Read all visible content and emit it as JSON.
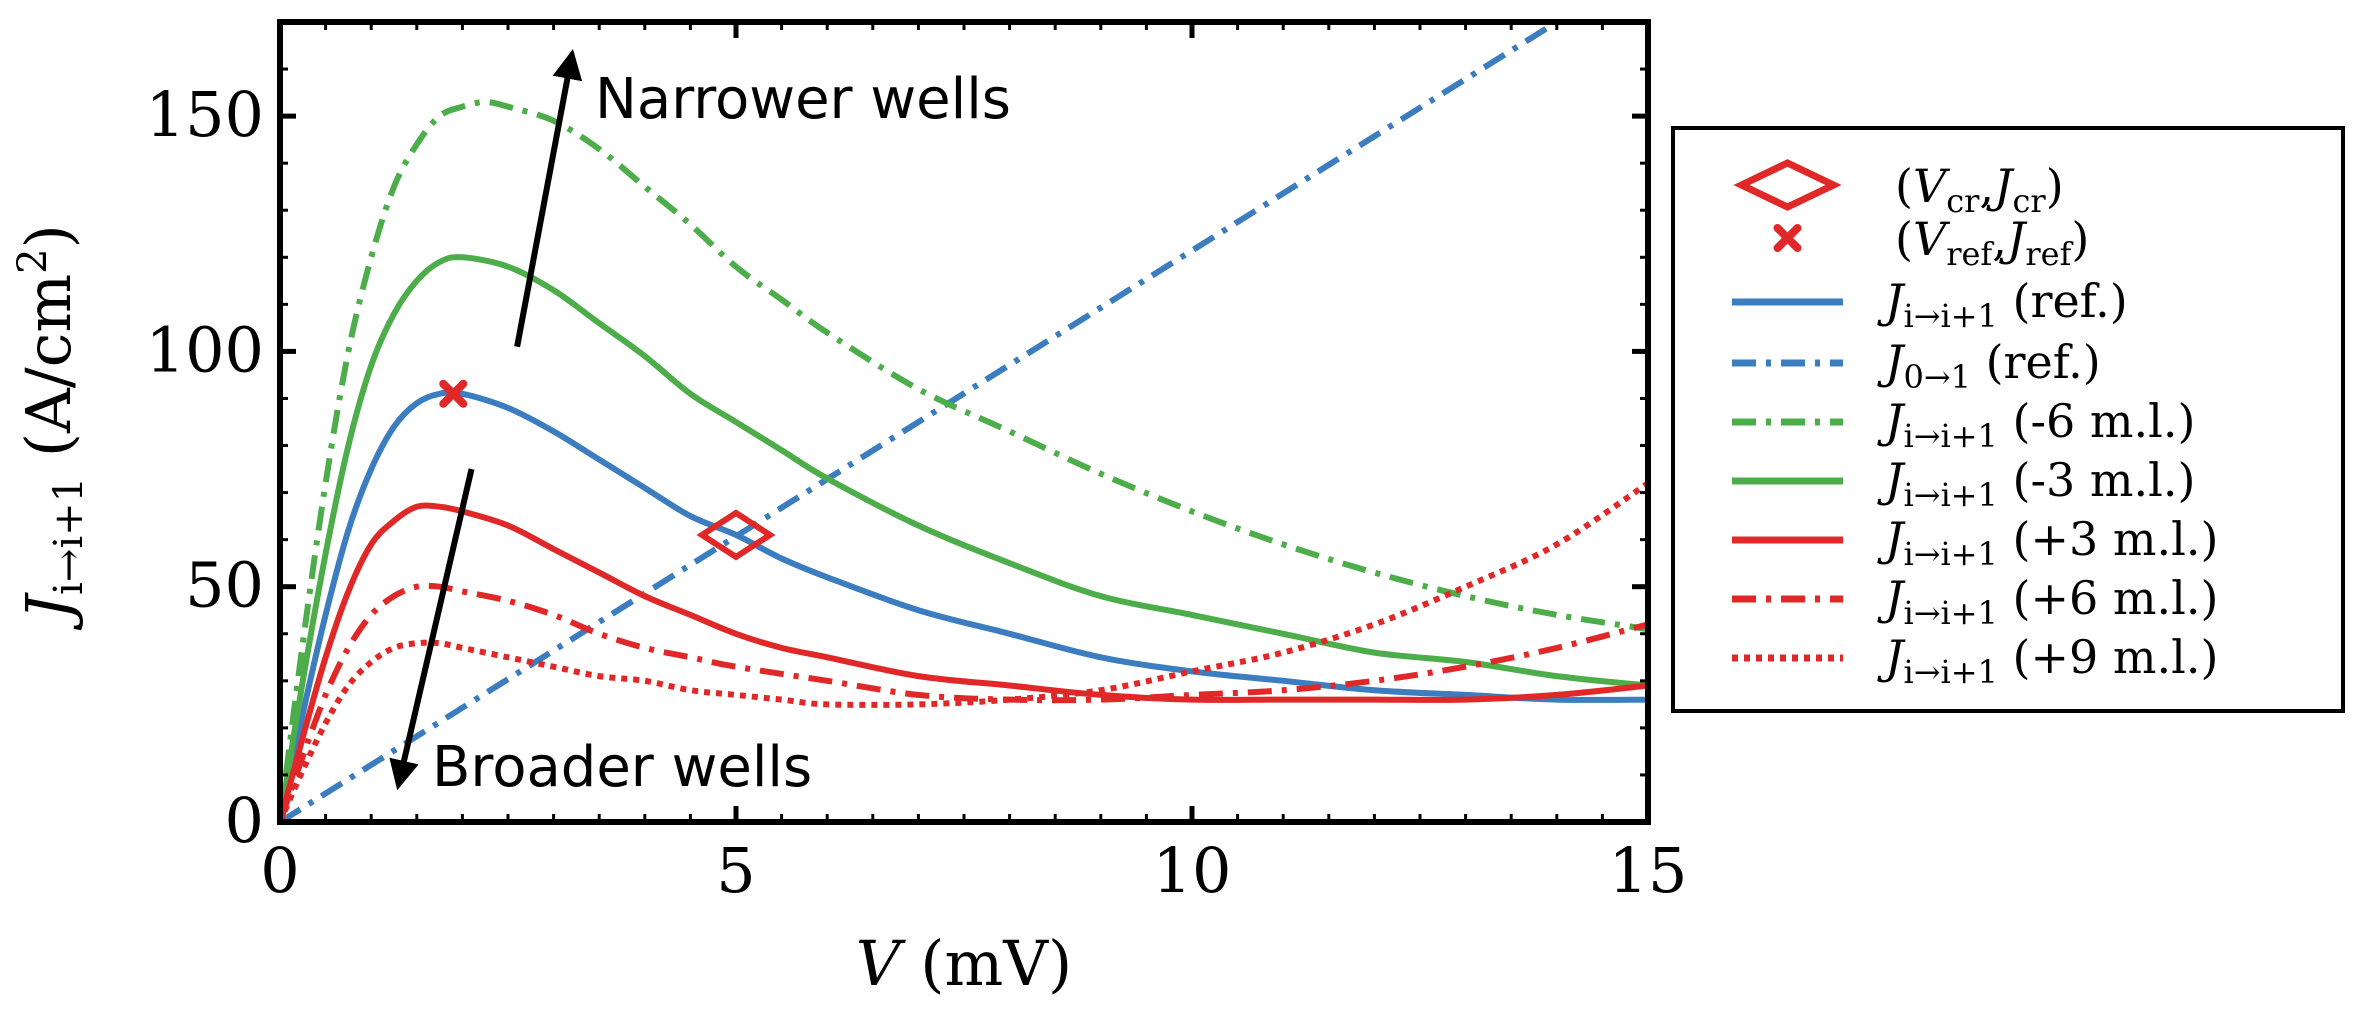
{
  "chart_data": {
    "type": "line",
    "title": "",
    "xlabel": {
      "symbol": "V",
      "unit": "(mV)"
    },
    "ylabel": {
      "symbol": "J",
      "subscript": "i→i+1",
      "unit_prefix": "(A/cm",
      "unit_sup": "2",
      "unit_suffix": ")"
    },
    "xlim": [
      0,
      15
    ],
    "ylim": [
      0,
      170
    ],
    "xticks": [
      0,
      5,
      10,
      15
    ],
    "yticks": [
      0,
      50,
      100,
      150
    ],
    "xtick_labels": [
      "0",
      "5",
      "10",
      "15"
    ],
    "ytick_labels": [
      "0",
      "50",
      "100",
      "150"
    ],
    "grid": false,
    "legend_position": "right-outside",
    "colors": {
      "blue": "#3b7dbf",
      "green": "#4dad4a",
      "red": "#e02828"
    },
    "series": [
      {
        "name": "J_i→i+1 (ref.)",
        "color": "#3b7dbf",
        "dash": "solid",
        "x": [
          0,
          0.25,
          0.5,
          0.75,
          1,
          1.25,
          1.5,
          1.75,
          2,
          2.5,
          3,
          3.5,
          4,
          4.5,
          5,
          5.5,
          6,
          7,
          8,
          9,
          10,
          11,
          12,
          13,
          14,
          15
        ],
        "y": [
          0,
          23,
          44,
          62,
          75,
          84,
          89,
          91,
          91,
          88,
          83,
          77,
          71,
          65,
          61,
          56,
          52,
          45,
          40,
          35,
          32,
          30,
          28,
          27,
          26,
          26
        ]
      },
      {
        "name": "J_0→1 (ref.)",
        "color": "#3b7dbf",
        "dash": "dashdot",
        "x": [
          0,
          14
        ],
        "y": [
          0,
          170
        ]
      },
      {
        "name": "J_i→i+1 (-6 m.l.)",
        "color": "#4dad4a",
        "dash": "dashdot",
        "x": [
          0,
          0.25,
          0.5,
          0.75,
          1,
          1.25,
          1.5,
          1.75,
          2,
          2.25,
          2.5,
          3,
          3.5,
          4,
          4.5,
          5,
          5.5,
          6,
          7,
          8,
          9,
          10,
          11,
          12,
          13,
          14,
          15
        ],
        "y": [
          0,
          38,
          72,
          100,
          120,
          135,
          144,
          150,
          152,
          153,
          152,
          149,
          143,
          135,
          127,
          118,
          111,
          104,
          92,
          83,
          74,
          66,
          59,
          53,
          48,
          44,
          41
        ]
      },
      {
        "name": "J_i→i+1 (-3 m.l.)",
        "color": "#4dad4a",
        "dash": "solid",
        "x": [
          0,
          0.25,
          0.5,
          0.75,
          1,
          1.25,
          1.5,
          1.75,
          2,
          2.5,
          3,
          3.5,
          4,
          4.5,
          5,
          5.5,
          6,
          7,
          8,
          9,
          10,
          11,
          12,
          13,
          14,
          15
        ],
        "y": [
          0,
          30,
          57,
          80,
          97,
          108,
          115,
          119,
          120,
          118,
          113,
          106,
          99,
          91,
          85,
          79,
          73,
          63,
          55,
          48,
          44,
          40,
          36,
          34,
          31,
          29
        ]
      },
      {
        "name": "J_i→i+1 (+3 m.l.)",
        "color": "#e02828",
        "dash": "solid",
        "x": [
          0,
          0.25,
          0.5,
          0.75,
          1,
          1.25,
          1.5,
          1.75,
          2,
          2.5,
          3,
          3.5,
          4,
          4.5,
          5,
          5.5,
          6,
          7,
          8,
          9,
          10,
          11,
          12,
          13,
          14,
          15
        ],
        "y": [
          0,
          18,
          35,
          49,
          59,
          64,
          67,
          67,
          66,
          63,
          58,
          53,
          48,
          44,
          40,
          37,
          35,
          31,
          29,
          27,
          26,
          26,
          26,
          26,
          27,
          29
        ]
      },
      {
        "name": "J_i→i+1 (+6 m.l.)",
        "color": "#e02828",
        "dash": "dashdot",
        "x": [
          0,
          0.25,
          0.5,
          0.75,
          1,
          1.25,
          1.5,
          1.75,
          2,
          2.5,
          3,
          3.5,
          4,
          4.5,
          5,
          6,
          7,
          8,
          9,
          10,
          11,
          12,
          13,
          14,
          15
        ],
        "y": [
          0,
          14,
          27,
          37,
          44,
          48,
          50,
          50,
          49,
          47,
          44,
          40,
          37,
          35,
          33,
          30,
          27,
          26,
          26,
          27,
          28,
          30,
          33,
          37,
          42
        ]
      },
      {
        "name": "J_i→i+1 (+9 m.l.)",
        "color": "#e02828",
        "dash": "dotted",
        "x": [
          0,
          0.25,
          0.5,
          0.75,
          1,
          1.25,
          1.5,
          1.75,
          2,
          2.5,
          3,
          3.5,
          4,
          4.5,
          5,
          5.5,
          6,
          7,
          8,
          9,
          10,
          11,
          12,
          13,
          14,
          15
        ],
        "y": [
          0,
          11,
          21,
          29,
          34,
          37,
          38,
          38,
          37,
          35,
          33,
          31,
          30,
          28,
          27,
          26,
          25,
          25,
          26,
          28,
          32,
          36,
          42,
          50,
          59,
          72
        ]
      }
    ],
    "markers": [
      {
        "name": "(V_cr,J_cr)",
        "shape": "open-diamond",
        "color": "#e02828",
        "x": 5,
        "y": 61
      },
      {
        "name": "(V_ref,J_ref)",
        "shape": "x",
        "color": "#e02828",
        "x": 1.9,
        "y": 91
      }
    ],
    "annotations": [
      {
        "text": "Narrower wells",
        "arrow_from": [
          2.6,
          101
        ],
        "arrow_to": [
          3.2,
          163
        ]
      },
      {
        "text": "Broader wells",
        "arrow_from": [
          2.1,
          75
        ],
        "arrow_to": [
          1.3,
          8
        ]
      }
    ],
    "legend": [
      {
        "kind": "marker",
        "shape": "open-diamond",
        "color": "#e02828",
        "open": "(",
        "sym1": "V",
        "sub1": "cr",
        "comma": ",",
        "sym2": "J",
        "sub2": "cr",
        "close": ")"
      },
      {
        "kind": "marker",
        "shape": "x",
        "color": "#e02828",
        "open": "(",
        "sym1": "V",
        "sub1": "ref",
        "comma": ",",
        "sym2": "J",
        "sub2": "ref",
        "close": ")"
      },
      {
        "kind": "line",
        "dash": "solid",
        "color": "#3b7dbf",
        "sym": "J",
        "sub": "i→i+1",
        "rest": " (ref.)"
      },
      {
        "kind": "line",
        "dash": "dashdot",
        "color": "#3b7dbf",
        "sym": "J",
        "sub": "0→1",
        "rest": " (ref.)"
      },
      {
        "kind": "line",
        "dash": "dashdot",
        "color": "#4dad4a",
        "sym": "J",
        "sub": "i→i+1",
        "rest": " (-6 m.l.)"
      },
      {
        "kind": "line",
        "dash": "solid",
        "color": "#4dad4a",
        "sym": "J",
        "sub": "i→i+1",
        "rest": " (-3 m.l.)"
      },
      {
        "kind": "line",
        "dash": "solid",
        "color": "#e02828",
        "sym": "J",
        "sub": "i→i+1",
        "rest": " (+3 m.l.)"
      },
      {
        "kind": "line",
        "dash": "dashdot",
        "color": "#e02828",
        "sym": "J",
        "sub": "i→i+1",
        "rest": " (+6 m.l.)"
      },
      {
        "kind": "line",
        "dash": "dotted",
        "color": "#e02828",
        "sym": "J",
        "sub": "i→i+1",
        "rest": " (+9 m.l.)"
      }
    ]
  }
}
